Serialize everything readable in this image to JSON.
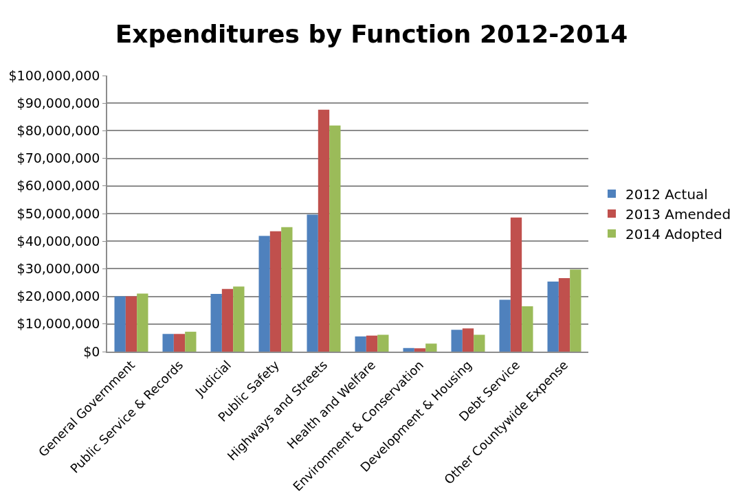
{
  "chart_data": {
    "type": "bar",
    "title": "Expenditures by Function 2012-2014",
    "categories": [
      "General Government",
      "Public Service & Records",
      "Judicial",
      "Public Safety",
      "Highways and Streets",
      "Health and Welfare",
      "Environment & Conservation",
      "Development & Housing",
      "Debt Service",
      "Other Countywide Expense"
    ],
    "series": [
      {
        "name": "2012 Actual",
        "color": "#4f81bd",
        "values": [
          20000000,
          6400000,
          20900000,
          41900000,
          49600000,
          5500000,
          1300000,
          7900000,
          18800000,
          25400000
        ]
      },
      {
        "name": "2013 Amended",
        "color": "#c0504d",
        "values": [
          20000000,
          6400000,
          22700000,
          43600000,
          87600000,
          5800000,
          1200000,
          8400000,
          48600000,
          26600000
        ]
      },
      {
        "name": "2014 Adopted",
        "color": "#9bbb59",
        "values": [
          21000000,
          7200000,
          23600000,
          45100000,
          81900000,
          6100000,
          2900000,
          6100000,
          16400000,
          29700000
        ]
      }
    ],
    "ylim": [
      0,
      100000000
    ],
    "yticks": [
      {
        "value": 0,
        "label": "$0"
      },
      {
        "value": 10000000,
        "label": "$10,000,000"
      },
      {
        "value": 20000000,
        "label": "$20,000,000"
      },
      {
        "value": 30000000,
        "label": "$30,000,000"
      },
      {
        "value": 40000000,
        "label": "$40,000,000"
      },
      {
        "value": 50000000,
        "label": "$50,000,000"
      },
      {
        "value": 60000000,
        "label": "$60,000,000"
      },
      {
        "value": 70000000,
        "label": "$70,000,000"
      },
      {
        "value": 80000000,
        "label": "$80,000,000"
      },
      {
        "value": 90000000,
        "label": "$90,000,000"
      },
      {
        "value": 100000000,
        "label": "$100,000,000"
      }
    ],
    "grid": "y",
    "legend": "right"
  }
}
